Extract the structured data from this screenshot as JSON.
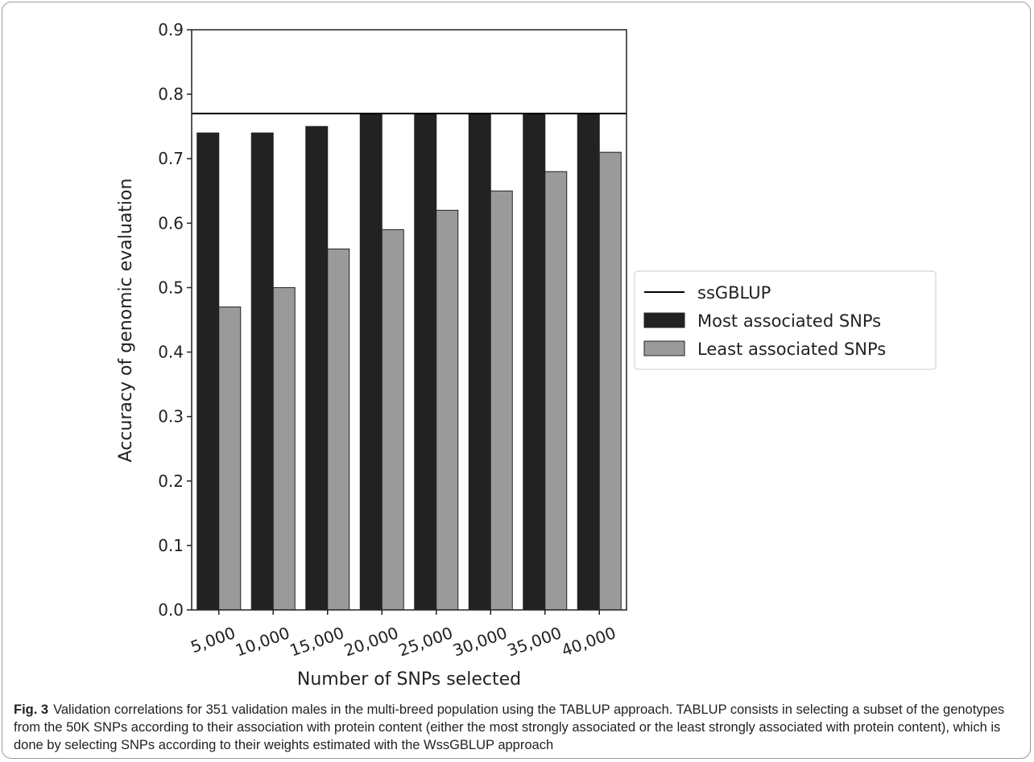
{
  "chart_data": {
    "type": "bar",
    "xlabel": "Number of SNPs selected",
    "ylabel": "Accuracy of genomic evaluation",
    "categories": [
      "5,000",
      "10,000",
      "15,000",
      "20,000",
      "25,000",
      "30,000",
      "35,000",
      "40,000"
    ],
    "series": [
      {
        "name": "Most associated SNPs",
        "color": "#222222",
        "values": [
          0.74,
          0.74,
          0.75,
          0.77,
          0.77,
          0.77,
          0.77,
          0.77
        ]
      },
      {
        "name": "Least associated SNPs",
        "color": "#9a9a9a",
        "values": [
          0.47,
          0.5,
          0.56,
          0.59,
          0.62,
          0.65,
          0.68,
          0.71
        ]
      }
    ],
    "hline": {
      "name": "ssGBLUP",
      "value": 0.77,
      "color": "#000000"
    },
    "ylim": [
      0,
      0.9
    ],
    "yticks": [
      {
        "value": 0,
        "label": "0.0"
      },
      0.1,
      0.2,
      0.3,
      0.4,
      0.5,
      0.6,
      0.7,
      0.8,
      0.9
    ],
    "legend": "right"
  },
  "caption": {
    "label": "Fig. 3",
    "text": "Validation correlations for 351 validation males in the multi-breed population using the TABLUP approach. TABLUP consists in selecting a subset of the genotypes from the 50K SNPs according to their association with protein content (either the most strongly associated or the least strongly associated with protein content), which is done by selecting SNPs according to their weights estimated with the WssGBLUP approach"
  }
}
